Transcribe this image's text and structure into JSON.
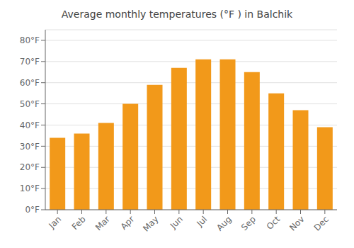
{
  "chart_data": {
    "type": "bar",
    "title": "Average monthly temperatures (°F ) in Balchik",
    "categories": [
      "Jan",
      "Feb",
      "Mar",
      "Apr",
      "May",
      "Jun",
      "Jul",
      "Aug",
      "Sep",
      "Oct",
      "Nov",
      "Dec"
    ],
    "values": [
      34,
      36,
      41,
      50,
      59,
      67,
      71,
      71,
      65,
      55,
      47,
      39
    ],
    "color": "#F2991A",
    "ylim": [
      0,
      85
    ],
    "yticks": [
      {
        "value": 0,
        "label": "0°F"
      },
      {
        "value": 10,
        "label": "10°F"
      },
      {
        "value": 20,
        "label": "20°F"
      },
      {
        "value": 30,
        "label": "30°F"
      },
      {
        "value": 40,
        "label": "40°F"
      },
      {
        "value": 50,
        "label": "50°F"
      },
      {
        "value": 60,
        "label": "60°F"
      },
      {
        "value": 70,
        "label": "70°F"
      },
      {
        "value": 80,
        "label": "80°F"
      }
    ],
    "grid": true
  }
}
